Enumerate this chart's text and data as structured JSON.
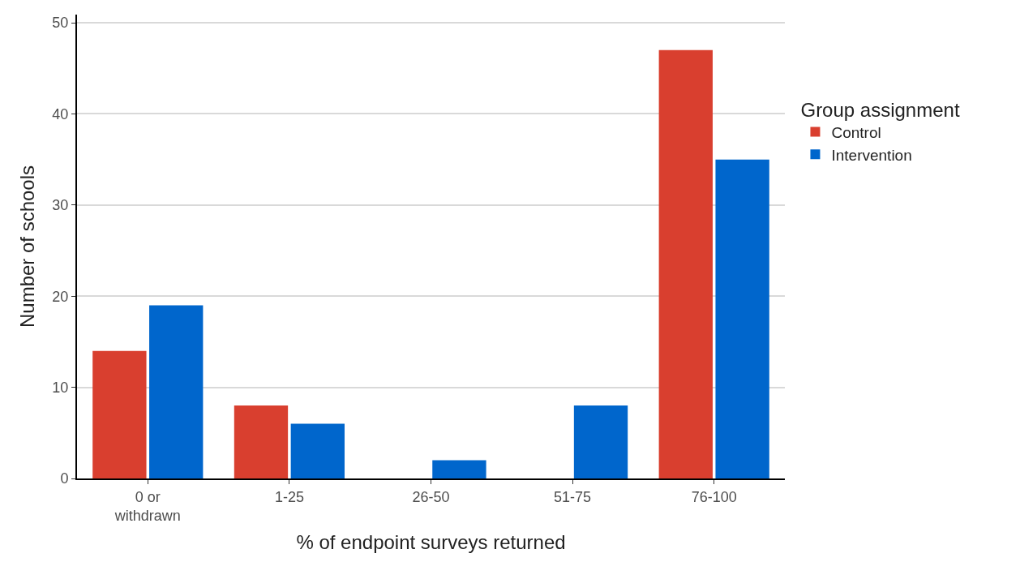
{
  "chart_data": {
    "type": "bar",
    "xlabel": "% of endpoint surveys returned",
    "ylabel": "Number of schools",
    "legend_title": "Group assignment",
    "categories": [
      "0 or\nwithdrawn",
      "1-25",
      "26-50",
      "51-75",
      "76-100"
    ],
    "series": [
      {
        "name": "Control",
        "color": "#d93f2f",
        "values": [
          14,
          8,
          0,
          0,
          47
        ]
      },
      {
        "name": "Intervention",
        "color": "#0066cc",
        "values": [
          19,
          6,
          2,
          8,
          35
        ]
      }
    ],
    "ylim": [
      0,
      50.9
    ],
    "yticks": [
      0,
      10,
      20,
      30,
      40,
      50
    ],
    "grid": "y",
    "legend": "right"
  }
}
